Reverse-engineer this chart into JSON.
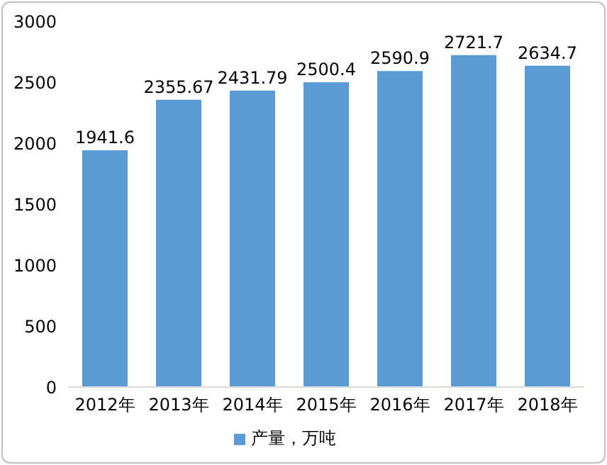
{
  "chart_data": {
    "type": "bar",
    "categories": [
      "2012年",
      "2013年",
      "2014年",
      "2015年",
      "2016年",
      "2017年",
      "2018年"
    ],
    "series": [
      {
        "name": "产量，万吨",
        "color": "#5b9bd5",
        "values": [
          1941.6,
          2355.67,
          2431.79,
          2500.4,
          2590.9,
          2721.7,
          2634.7
        ]
      }
    ],
    "ylim": [
      0,
      3000
    ],
    "yticks": [
      0,
      500,
      1000,
      1500,
      2000,
      2500,
      3000
    ],
    "data_labels": true,
    "grid": false,
    "legend": "bottom"
  }
}
